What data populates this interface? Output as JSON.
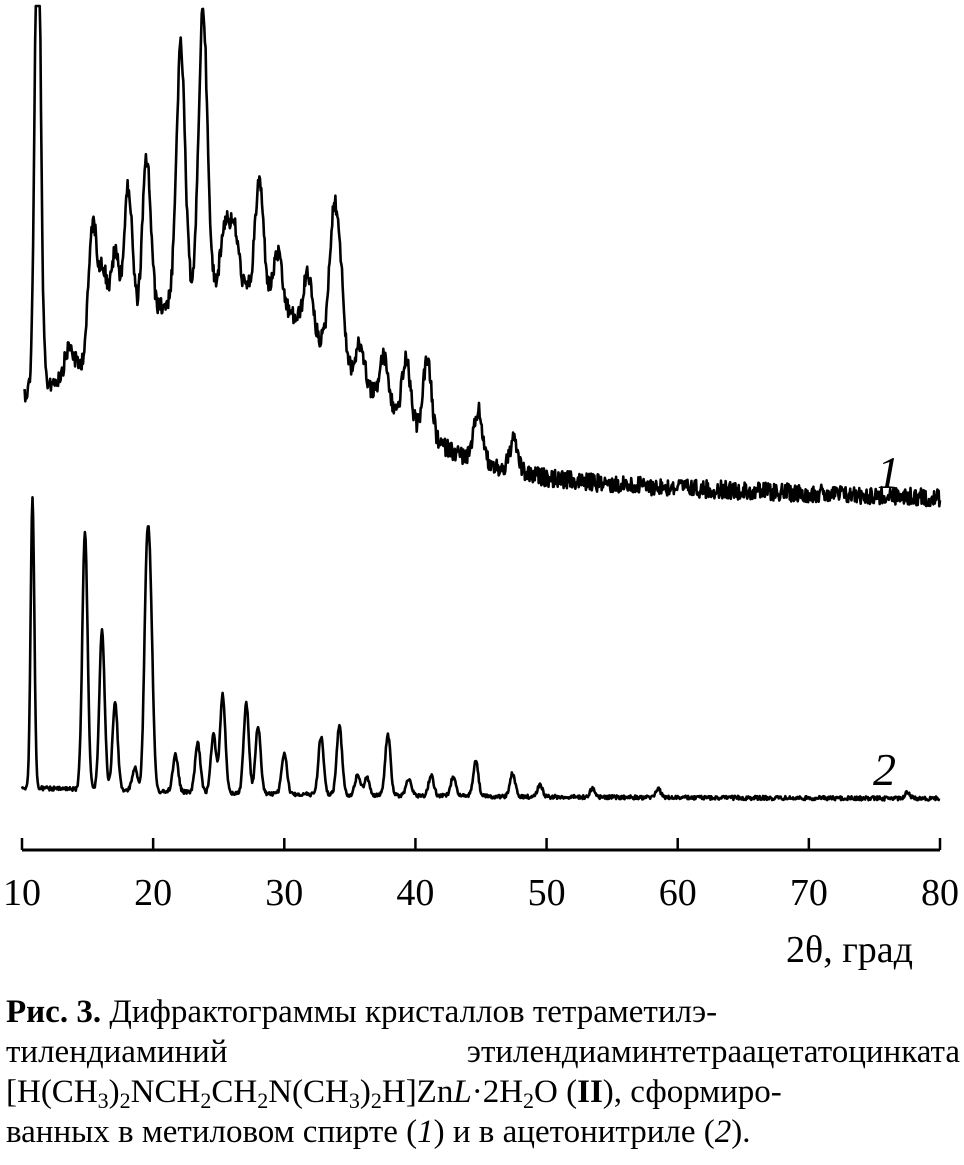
{
  "chart_data": {
    "type": "line",
    "xlabel": "2θ, град",
    "xlim": [
      10,
      80
    ],
    "x_ticks": [
      10,
      20,
      30,
      40,
      50,
      60,
      70,
      80
    ],
    "grid": false,
    "legend": "inline labels at right end of each curve",
    "series_color": "#000000",
    "series": [
      {
        "label": "1",
        "peaks_2theta": [
          11.2,
          13.6,
          15.4,
          16.2,
          17.1,
          18.1,
          19.5,
          22.1,
          23.8,
          25.5,
          26.2,
          28.1,
          29.5,
          31.8,
          33.7,
          34.2,
          35.8,
          37.6,
          39.3,
          40.9,
          44.8,
          47.5
        ],
        "peaks_intensity": [
          100,
          5,
          26,
          15,
          17,
          28,
          31,
          49,
          55,
          12,
          11,
          22,
          10,
          11,
          22,
          18,
          7,
          9,
          12,
          15,
          10,
          6
        ]
      },
      {
        "label": "2",
        "peaks_2theta": [
          10.8,
          14.8,
          16.1,
          17.1,
          18.6,
          19.5,
          19.8,
          21.7,
          23.4,
          24.6,
          25.3,
          27.1,
          28.0,
          30.0,
          32.8,
          34.2,
          35.6,
          36.3,
          37.9,
          39.5,
          41.2,
          42.9,
          44.6,
          47.4,
          49.5,
          53.5,
          58.5,
          77.5
        ],
        "peaks_intensity": [
          100,
          89,
          55,
          30,
          8,
          67,
          54,
          13,
          17,
          20,
          34,
          31,
          23,
          14,
          20,
          24,
          7,
          6,
          21,
          6,
          7,
          7,
          12,
          8,
          4,
          3,
          3,
          2
        ]
      }
    ]
  },
  "caption": {
    "fig_label": "Рис. 3.",
    "line1": "Дифрактограммы кристаллов тетраметилэ-",
    "line2": "тилендиаминий этилендиаминтетраацетатоцинката",
    "formula": {
      "p1": "[H(CH",
      "s1": "3",
      "p2": ")",
      "s2": "2",
      "p3": "NCH",
      "s3": "2",
      "p4": "CH",
      "s4": "2",
      "p5": "N(CH",
      "s5": "3",
      "p6": ")",
      "s6": "2",
      "p7": "H]Zn",
      "L": "L",
      "p8": "·2H",
      "s8": "2",
      "p9": "O (",
      "bold": "II",
      "p10": "), сформиро-"
    },
    "line4a": "ванных в метиловом спирте (",
    "ref1": "1",
    "line4b": ") и в ацетонитриле (",
    "ref2": "2",
    "line4c": ")."
  }
}
